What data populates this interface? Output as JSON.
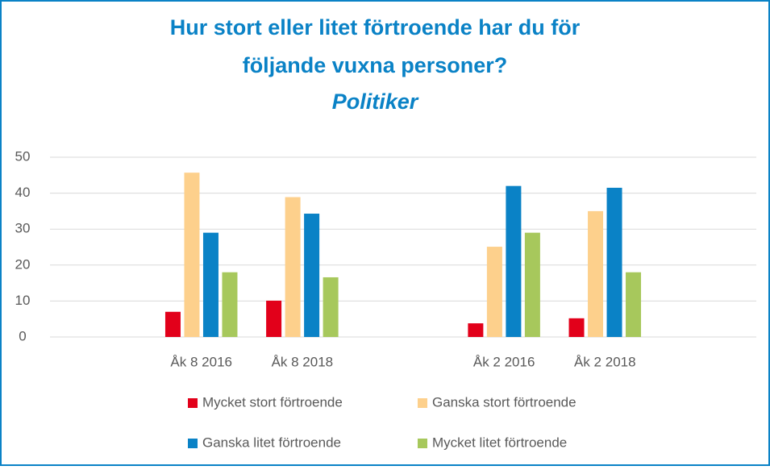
{
  "chart_data": {
    "type": "bar",
    "title": [
      "Hur stort eller litet förtroende har du för",
      "följande vuxna personer?"
    ],
    "subtitle": "Politiker",
    "categories": [
      null,
      "Åk 8 2016",
      "Åk 8 2018",
      null,
      "Åk 2 2016",
      "Åk 2 2018",
      null
    ],
    "series": [
      {
        "name": "Mycket stort förtroende",
        "color": "#e2001a",
        "values": [
          null,
          7,
          10.1,
          null,
          3.8,
          5.2,
          null
        ]
      },
      {
        "name": "Ganska stort förtroende",
        "color": "#fdd08c",
        "values": [
          null,
          45.7,
          38.9,
          null,
          25.1,
          35,
          null
        ]
      },
      {
        "name": "Ganska litet förtroende",
        "color": "#0a82c6",
        "values": [
          null,
          29,
          34.3,
          null,
          42,
          41.5,
          null
        ]
      },
      {
        "name": "Mycket litet förtroende",
        "color": "#a7c85c",
        "values": [
          null,
          18,
          16.6,
          null,
          29,
          18,
          null
        ]
      }
    ],
    "ylim": [
      0,
      50
    ],
    "yticks": [
      0,
      10,
      20,
      30,
      40,
      50
    ],
    "grid": true,
    "legend": "bottom"
  }
}
